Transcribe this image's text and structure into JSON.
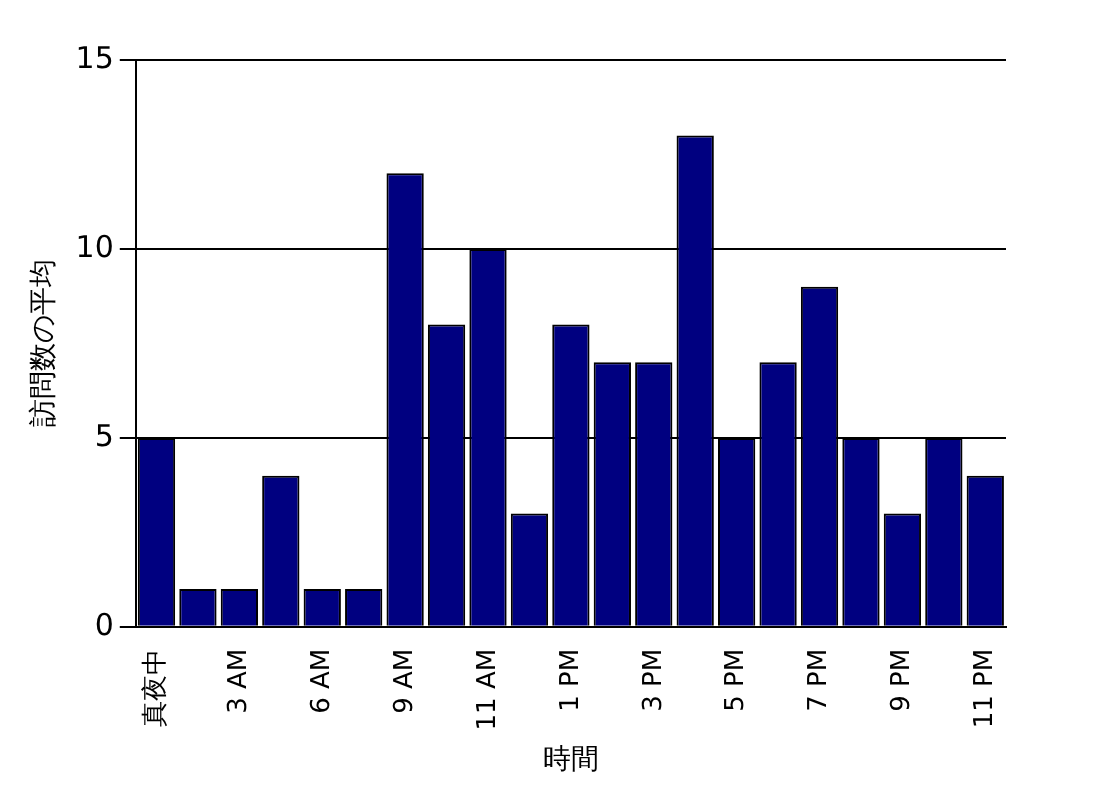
{
  "chart_data": {
    "type": "bar",
    "xlabel": "時間",
    "ylabel": "訪問数の平均",
    "categories": [
      "真夜中",
      null,
      "3 AM",
      null,
      "6 AM",
      null,
      "9 AM",
      null,
      "11 AM",
      null,
      "1 PM",
      null,
      "3 PM",
      null,
      "5 PM",
      null,
      "7 PM",
      null,
      "9 PM",
      null,
      "11 PM"
    ],
    "values": [
      5,
      1,
      1,
      4,
      1,
      1,
      12,
      8,
      10,
      3,
      8,
      7,
      7,
      13,
      5,
      7,
      9,
      5,
      3,
      5,
      4
    ],
    "color": "#000080",
    "ylim": [
      0,
      15
    ],
    "yticks": [
      0,
      5,
      10,
      15
    ],
    "grid": "y",
    "legend": false
  }
}
